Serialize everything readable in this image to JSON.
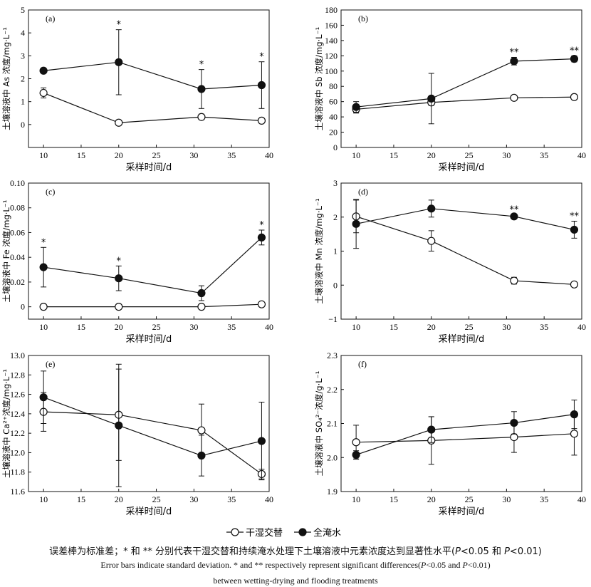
{
  "legend": {
    "dry_wet": "干湿交替",
    "flooding": "全淹水"
  },
  "caption": {
    "cn_a": "误差棒为标准差；* 和 ** 分别代表干湿交替和持续淹水处理下土壤溶液中元素浓度达到显著性水平(",
    "cn_p1": "P",
    "cn_b": "<0.05 和 ",
    "cn_p2": "P",
    "cn_c": "<0.01)",
    "en1_a": "Error bars indicate standard deviation. * and ** respectively represent significant differences(",
    "en1_p1": "P",
    "en1_b": "<0.05 and ",
    "en1_p2": "P",
    "en1_c": "<0.01)",
    "en2": "between wetting-drying and flooding treatments"
  },
  "chart_data": [
    {
      "type": "line",
      "panel": "(a)",
      "xlabel": "采样时间/d",
      "ylabel": "土壤溶液中 As 浓度/mg·L⁻¹",
      "xlim": [
        8,
        40
      ],
      "ylim": [
        -1,
        5
      ],
      "xticks": [
        10,
        15,
        20,
        25,
        30,
        35,
        40
      ],
      "yticks": [
        0,
        1,
        2,
        3,
        4,
        5
      ],
      "x": [
        10,
        20,
        31,
        39
      ],
      "series": [
        {
          "name": "干湿交替",
          "marker": "open",
          "values": [
            1.38,
            0.08,
            0.33,
            0.17
          ],
          "err": [
            0.22,
            0.05,
            0.12,
            0.07
          ]
        },
        {
          "name": "全淹水",
          "marker": "filled",
          "values": [
            2.35,
            2.72,
            1.55,
            1.72
          ],
          "err": [
            0.0,
            1.42,
            0.85,
            1.02
          ]
        }
      ],
      "sig": [
        {
          "x": 20,
          "label": "*"
        },
        {
          "x": 31,
          "label": "*"
        },
        {
          "x": 39,
          "label": "*"
        }
      ]
    },
    {
      "type": "line",
      "panel": "(b)",
      "xlabel": "采样时间/d",
      "ylabel": "土壤溶液中 Sb 浓度/mg·L⁻¹",
      "xlim": [
        8,
        40
      ],
      "ylim": [
        0,
        180
      ],
      "xticks": [
        10,
        15,
        20,
        25,
        30,
        35,
        40
      ],
      "yticks": [
        0,
        20,
        40,
        60,
        80,
        100,
        120,
        140,
        160,
        180
      ],
      "x": [
        10,
        20,
        31,
        39
      ],
      "series": [
        {
          "name": "干湿交替",
          "marker": "open",
          "values": [
            50,
            59,
            65,
            66
          ],
          "err": [
            5,
            4,
            2,
            2
          ]
        },
        {
          "name": "全淹水",
          "marker": "filled",
          "values": [
            53,
            64,
            113,
            116
          ],
          "err": [
            7,
            33,
            5,
            4
          ]
        }
      ],
      "sig": [
        {
          "x": 31,
          "label": "**"
        },
        {
          "x": 39,
          "label": "**"
        }
      ]
    },
    {
      "type": "line",
      "panel": "(c)",
      "xlabel": "采样时间/d",
      "ylabel": "土壤溶液中 Fe 浓度/mg·L⁻¹",
      "xlim": [
        8,
        40
      ],
      "ylim": [
        -0.01,
        0.1
      ],
      "xticks": [
        10,
        15,
        20,
        25,
        30,
        35,
        40
      ],
      "yticks": [
        0,
        0.02,
        0.04,
        0.06,
        0.08,
        0.1
      ],
      "x": [
        10,
        20,
        31,
        39
      ],
      "series": [
        {
          "name": "干湿交替",
          "marker": "open",
          "values": [
            0.0,
            0.0,
            0.0,
            0.002
          ],
          "err": [
            0,
            0,
            0,
            0.002
          ]
        },
        {
          "name": "全淹水",
          "marker": "filled",
          "values": [
            0.032,
            0.023,
            0.011,
            0.056
          ],
          "err": [
            0.016,
            0.01,
            0.006,
            0.006
          ]
        }
      ],
      "sig": [
        {
          "x": 10,
          "label": "*"
        },
        {
          "x": 20,
          "label": "*"
        },
        {
          "x": 39,
          "label": "*"
        }
      ]
    },
    {
      "type": "line",
      "panel": "(d)",
      "xlabel": "采样时间/d",
      "ylabel": "土壤溶液中 Mn 浓度/mg·L⁻¹",
      "xlim": [
        8,
        40
      ],
      "ylim": [
        -1,
        3
      ],
      "xticks": [
        10,
        15,
        20,
        25,
        30,
        35,
        40
      ],
      "yticks": [
        -1,
        0,
        1,
        2,
        3
      ],
      "x": [
        10,
        20,
        31,
        39
      ],
      "series": [
        {
          "name": "干湿交替",
          "marker": "open",
          "values": [
            2.02,
            1.3,
            0.13,
            0.02
          ],
          "err": [
            0.48,
            0.3,
            0.1,
            0.03
          ]
        },
        {
          "name": "全淹水",
          "marker": "filled",
          "values": [
            1.8,
            2.25,
            2.02,
            1.63
          ],
          "err": [
            0.72,
            0.25,
            0.05,
            0.25
          ]
        }
      ],
      "sig": [
        {
          "x": 31,
          "label": "**"
        },
        {
          "x": 39,
          "label": "**"
        }
      ]
    },
    {
      "type": "line",
      "panel": "(e)",
      "xlabel": "采样时间/d",
      "ylabel": "土壤溶液中 Ca²⁺浓度/mg·L⁻¹",
      "xlim": [
        8,
        40
      ],
      "ylim": [
        11.6,
        13.0
      ],
      "xticks": [
        10,
        15,
        20,
        25,
        30,
        35,
        40
      ],
      "yticks": [
        11.6,
        11.8,
        12.0,
        12.2,
        12.4,
        12.6,
        12.8,
        13.0
      ],
      "x": [
        10,
        20,
        31,
        39
      ],
      "series": [
        {
          "name": "干湿交替",
          "marker": "open",
          "values": [
            12.42,
            12.39,
            12.23,
            11.78
          ],
          "err": [
            0.2,
            0.47,
            0.27,
            0.05
          ]
        },
        {
          "name": "全淹水",
          "marker": "filled",
          "values": [
            12.57,
            12.28,
            11.97,
            12.12
          ],
          "err": [
            0.27,
            0.63,
            0.21,
            0.4
          ]
        }
      ],
      "sig": []
    },
    {
      "type": "line",
      "panel": "(f)",
      "xlabel": "采样时间/d",
      "ylabel": "土壤溶液中 SO₄²⁻浓度/g·L⁻¹",
      "xlim": [
        8,
        40
      ],
      "ylim": [
        1.9,
        2.3
      ],
      "xticks": [
        10,
        15,
        20,
        25,
        30,
        35,
        40
      ],
      "yticks": [
        1.9,
        2.0,
        2.1,
        2.2,
        2.3
      ],
      "x": [
        10,
        20,
        31,
        39
      ],
      "series": [
        {
          "name": "干湿交替",
          "marker": "open",
          "values": [
            2.045,
            2.05,
            2.06,
            2.07
          ],
          "err": [
            0.05,
            0.07,
            0.045,
            0.063
          ]
        },
        {
          "name": "全淹水",
          "marker": "filled",
          "values": [
            2.008,
            2.082,
            2.102,
            2.127
          ],
          "err": [
            0.012,
            0.038,
            0.033,
            0.042
          ]
        }
      ],
      "sig": []
    }
  ]
}
